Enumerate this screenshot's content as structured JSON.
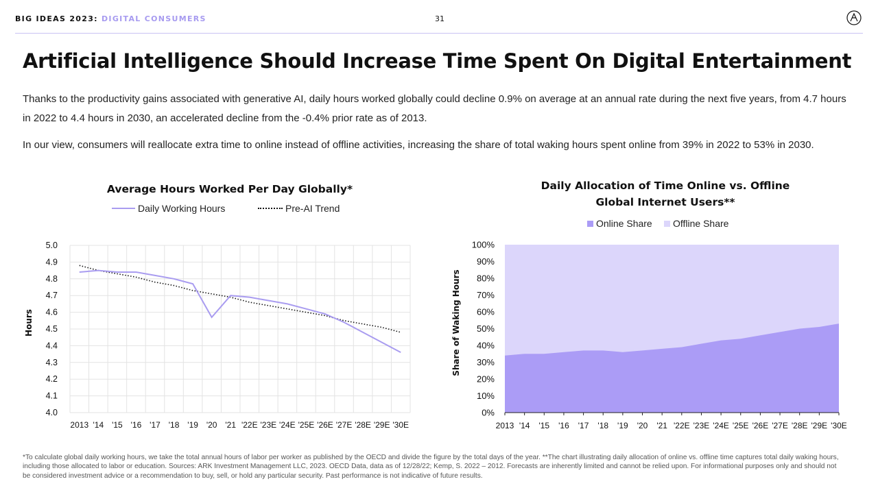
{
  "header": {
    "brand_main": "BIG IDEAS 2023:",
    "brand_section": "DIGITAL CONSUMERS",
    "page_number": "31"
  },
  "title": "Artificial Intelligence Should Increase Time Spent On Digital Entertainment",
  "paragraphs": [
    "Thanks to the productivity gains associated with generative AI, daily hours worked globally could decline 0.9% on average at an annual rate during the next five years, from 4.7 hours in 2022 to 4.4 hours in 2030, an accelerated decline from the -0.4% prior rate as of 2013.",
    "In our view, consumers will reallocate extra time to online instead of offline activities, increasing the share of total waking hours spent online from 39% in 2022 to 53% in 2030."
  ],
  "footnote": "*To calculate global daily working hours, we take the total annual hours of labor per worker as published by the OECD and divide the figure by the total days of the year. **The chart illustrating daily allocation of online vs. offline time captures total daily waking hours, including those allocated to labor or education. Sources: ARK Investment Management LLC, 2023. OECD Data, data as of 12/28/22; Kemp, S. 2022 – 2012. Forecasts are inherently limited and cannot be relied upon. For informational purposes only and should not be considered investment advice or a recommendation to buy, sell, or hold any particular security. Past performance is not indicative of future results.",
  "colors": {
    "accent": "#a79bf0",
    "line": "#a99cf0",
    "online": "#ab9cf6",
    "offline": "#dcd6fb"
  },
  "chart_data": [
    {
      "type": "line",
      "title": "Average Hours Worked Per Day Globally*",
      "xlabel": "",
      "ylabel": "Hours",
      "categories": [
        "2013",
        "'14",
        "'15",
        "'16",
        "'17",
        "'18",
        "'19",
        "'20",
        "'21",
        "'22E",
        "'23E",
        "'24E",
        "'25E",
        "'26E",
        "'27E",
        "'28E",
        "'29E",
        "'30E"
      ],
      "ylim": [
        4.0,
        5.0
      ],
      "yticks": [
        "5.0",
        "4.9",
        "4.8",
        "4.7",
        "4.6",
        "4.5",
        "4.4",
        "4.3",
        "4.2",
        "4.1",
        "4.0"
      ],
      "grid": true,
      "legend_position": "top",
      "series": [
        {
          "name": "Daily Working Hours",
          "style": "solid",
          "values": [
            4.84,
            4.85,
            4.84,
            4.84,
            4.82,
            4.8,
            4.77,
            4.57,
            4.7,
            4.69,
            4.67,
            4.65,
            4.62,
            4.59,
            4.54,
            4.48,
            4.42,
            4.36
          ]
        },
        {
          "name": "Pre-AI Trend",
          "style": "dotted",
          "values": [
            4.88,
            4.85,
            4.83,
            4.81,
            4.78,
            4.76,
            4.73,
            4.71,
            4.69,
            4.66,
            4.64,
            4.62,
            4.6,
            4.58,
            4.55,
            4.53,
            4.51,
            4.48
          ]
        }
      ]
    },
    {
      "type": "area",
      "stacked": true,
      "title": "Daily Allocation of Time Online vs. Offline Global Internet Users**",
      "title_lines": [
        "Daily Allocation of Time Online vs. Offline",
        "Global Internet Users**"
      ],
      "xlabel": "",
      "ylabel": "Share of Waking Hours",
      "categories": [
        "2013",
        "'14",
        "'15",
        "'16",
        "'17",
        "'18",
        "'19",
        "'20",
        "'21",
        "'22E",
        "'23E",
        "'24E",
        "'25E",
        "'26E",
        "'27E",
        "'28E",
        "'29E",
        "'30E"
      ],
      "ylim": [
        0,
        100
      ],
      "yticks": [
        "100%",
        "90%",
        "80%",
        "70%",
        "60%",
        "50%",
        "40%",
        "30%",
        "20%",
        "10%",
        "0%"
      ],
      "grid": false,
      "legend_position": "top",
      "series": [
        {
          "name": "Online Share",
          "values": [
            34,
            35,
            35,
            36,
            37,
            37,
            36,
            37,
            38,
            39,
            41,
            43,
            44,
            46,
            48,
            50,
            51,
            53
          ]
        },
        {
          "name": "Offline Share",
          "values": [
            66,
            65,
            65,
            64,
            63,
            63,
            64,
            63,
            62,
            61,
            59,
            57,
            56,
            54,
            52,
            50,
            49,
            47
          ]
        }
      ]
    }
  ]
}
